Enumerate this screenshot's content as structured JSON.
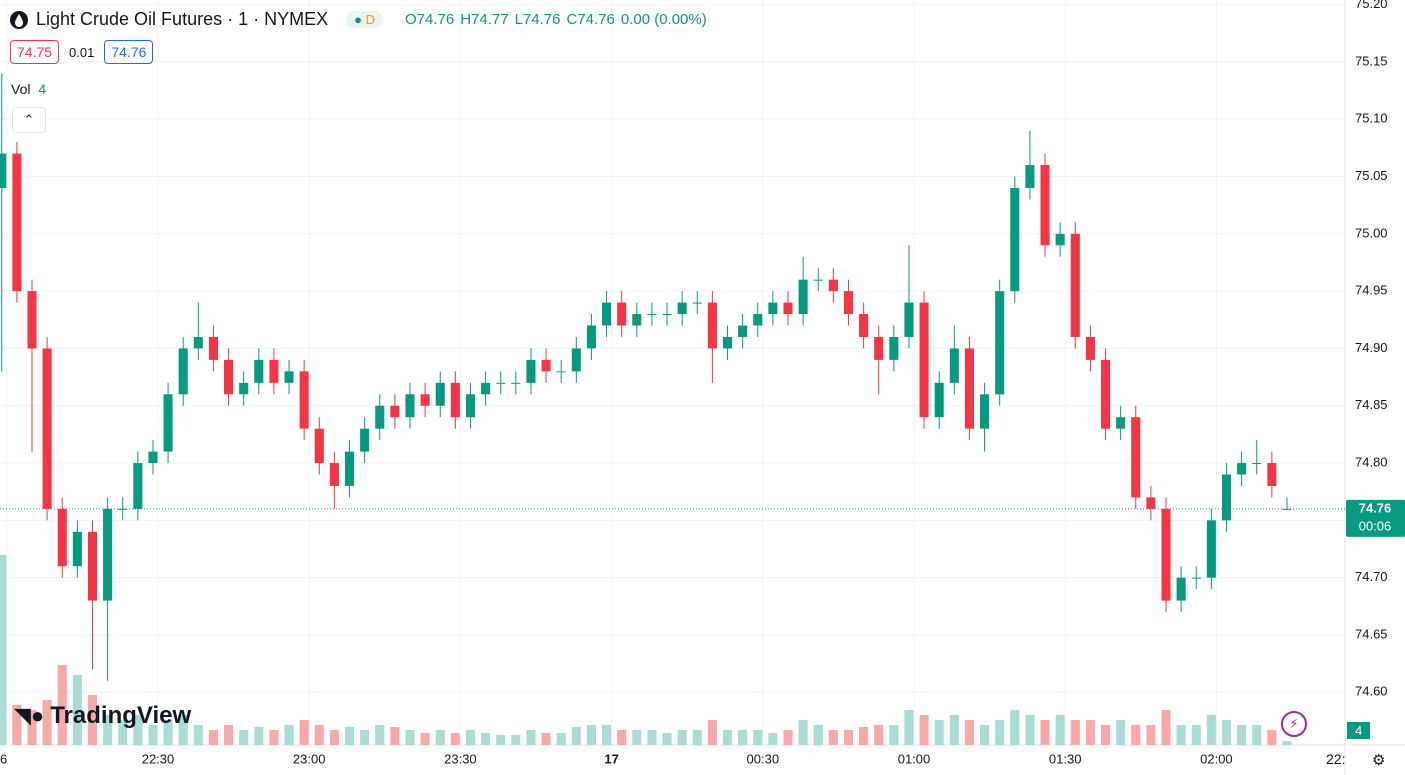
{
  "chart_data": {
    "type": "candlestick",
    "title": "Light Crude Oil Futures · 1 · NYMEX",
    "x": [
      "21:59",
      "22:02",
      "22:05",
      "22:08",
      "22:11",
      "22:14",
      "22:17",
      "22:20",
      "22:23",
      "22:26",
      "22:29",
      "22:32",
      "22:35",
      "22:38",
      "22:41",
      "22:44",
      "22:47",
      "22:50",
      "22:53",
      "22:56",
      "22:59",
      "23:02",
      "23:05",
      "23:08",
      "23:11",
      "23:14",
      "23:17",
      "23:20",
      "23:23",
      "23:26",
      "23:29",
      "23:32",
      "23:35",
      "23:38",
      "23:41",
      "23:44",
      "23:47",
      "23:50",
      "23:53",
      "23:56",
      "23:59",
      "00:02",
      "00:05",
      "00:08",
      "00:11",
      "00:14",
      "00:17",
      "00:20",
      "00:23",
      "00:26",
      "00:29",
      "00:32",
      "00:35",
      "00:38",
      "00:41",
      "00:44",
      "00:47",
      "00:50",
      "00:53",
      "00:56",
      "00:59",
      "01:02",
      "01:05",
      "01:08",
      "01:11",
      "01:14",
      "01:17",
      "01:20",
      "01:23",
      "01:26",
      "01:29",
      "01:32",
      "01:35",
      "01:38",
      "01:41",
      "01:44",
      "01:47",
      "01:50",
      "01:53",
      "01:56",
      "01:59",
      "02:02",
      "02:05",
      "02:08",
      "02:11",
      "02:14"
    ],
    "open": [
      75.04,
      75.07,
      74.95,
      74.9,
      74.76,
      74.71,
      74.74,
      74.68,
      74.76,
      74.76,
      74.8,
      74.81,
      74.86,
      74.9,
      74.91,
      74.89,
      74.86,
      74.87,
      74.89,
      74.87,
      74.88,
      74.83,
      74.8,
      74.78,
      74.81,
      74.83,
      74.85,
      74.84,
      74.86,
      74.85,
      74.87,
      74.84,
      74.86,
      74.87,
      74.87,
      74.87,
      74.89,
      74.88,
      74.88,
      74.9,
      74.92,
      74.94,
      74.92,
      74.93,
      74.93,
      74.93,
      74.94,
      74.94,
      74.9,
      74.91,
      74.92,
      74.93,
      74.94,
      74.93,
      74.96,
      74.96,
      74.95,
      74.93,
      74.91,
      74.89,
      74.91,
      74.94,
      74.84,
      74.87,
      74.9,
      74.83,
      74.86,
      74.95,
      75.04,
      75.06,
      74.99,
      75.0,
      74.91,
      74.89,
      74.83,
      74.84,
      74.77,
      74.76,
      74.68,
      74.7,
      74.7,
      74.75,
      74.79,
      74.8,
      74.8,
      74.76
    ],
    "high": [
      75.14,
      75.08,
      74.96,
      74.91,
      74.77,
      74.75,
      74.75,
      74.77,
      74.77,
      74.81,
      74.82,
      74.87,
      74.91,
      74.94,
      74.92,
      74.9,
      74.88,
      74.9,
      74.9,
      74.89,
      74.89,
      74.84,
      74.81,
      74.82,
      74.84,
      74.86,
      74.86,
      74.87,
      74.87,
      74.88,
      74.88,
      74.87,
      74.88,
      74.88,
      74.88,
      74.9,
      74.9,
      74.89,
      74.91,
      74.93,
      74.95,
      74.95,
      74.94,
      74.94,
      74.94,
      74.95,
      74.95,
      74.95,
      74.92,
      74.93,
      74.94,
      74.95,
      74.95,
      74.98,
      74.97,
      74.97,
      74.96,
      74.94,
      74.92,
      74.92,
      74.99,
      74.95,
      74.88,
      74.92,
      74.91,
      74.87,
      74.96,
      75.05,
      75.09,
      75.07,
      75.01,
      75.01,
      74.92,
      74.9,
      74.85,
      74.85,
      74.78,
      74.77,
      74.71,
      74.71,
      74.76,
      74.8,
      74.81,
      74.82,
      74.81,
      74.77
    ],
    "low": [
      74.88,
      74.94,
      74.81,
      74.75,
      74.7,
      74.7,
      74.62,
      74.61,
      74.75,
      74.75,
      74.79,
      74.8,
      74.85,
      74.89,
      74.88,
      74.85,
      74.85,
      74.86,
      74.86,
      74.86,
      74.82,
      74.79,
      74.76,
      74.77,
      74.8,
      74.82,
      74.83,
      74.83,
      74.84,
      74.84,
      74.83,
      74.83,
      74.85,
      74.86,
      74.86,
      74.86,
      74.87,
      74.87,
      74.87,
      74.89,
      74.91,
      74.91,
      74.91,
      74.92,
      74.92,
      74.92,
      74.93,
      74.87,
      74.89,
      74.9,
      74.91,
      74.92,
      74.92,
      74.92,
      74.95,
      74.94,
      74.92,
      74.9,
      74.86,
      74.88,
      74.9,
      74.83,
      74.83,
      74.86,
      74.82,
      74.81,
      74.85,
      74.94,
      75.03,
      74.98,
      74.98,
      74.9,
      74.88,
      74.82,
      74.82,
      74.76,
      74.75,
      74.67,
      74.67,
      74.69,
      74.69,
      74.74,
      74.78,
      74.79,
      74.77,
      74.76
    ],
    "close": [
      75.07,
      74.95,
      74.9,
      74.76,
      74.71,
      74.74,
      74.68,
      74.76,
      74.76,
      74.8,
      74.81,
      74.86,
      74.9,
      74.91,
      74.89,
      74.86,
      74.87,
      74.89,
      74.87,
      74.88,
      74.83,
      74.8,
      74.78,
      74.81,
      74.83,
      74.85,
      74.84,
      74.86,
      74.85,
      74.87,
      74.84,
      74.86,
      74.87,
      74.87,
      74.87,
      74.89,
      74.88,
      74.88,
      74.9,
      74.92,
      74.94,
      74.92,
      74.93,
      74.93,
      74.93,
      74.94,
      74.94,
      74.9,
      74.91,
      74.92,
      74.93,
      74.94,
      74.93,
      74.96,
      74.96,
      74.95,
      74.93,
      74.91,
      74.89,
      74.91,
      74.94,
      74.84,
      74.87,
      74.9,
      74.83,
      74.86,
      74.95,
      75.04,
      75.06,
      74.99,
      75.0,
      74.91,
      74.89,
      74.83,
      74.84,
      74.77,
      74.76,
      74.68,
      74.7,
      74.7,
      74.75,
      74.79,
      74.8,
      74.8,
      74.78,
      74.76
    ],
    "volume": [
      190,
      40,
      35,
      45,
      80,
      70,
      50,
      30,
      25,
      30,
      20,
      25,
      30,
      20,
      15,
      20,
      15,
      18,
      15,
      20,
      25,
      20,
      15,
      18,
      15,
      20,
      18,
      15,
      12,
      15,
      12,
      15,
      12,
      10,
      10,
      15,
      12,
      12,
      18,
      20,
      20,
      15,
      15,
      15,
      12,
      15,
      15,
      25,
      15,
      15,
      15,
      12,
      15,
      25,
      20,
      15,
      15,
      18,
      20,
      20,
      35,
      30,
      25,
      30,
      25,
      20,
      25,
      35,
      30,
      25,
      30,
      25,
      25,
      20,
      25,
      20,
      20,
      35,
      20,
      20,
      30,
      25,
      20,
      20,
      15,
      4
    ],
    "up_color": "#089981",
    "down_color": "#f23645",
    "volume_up_color": "#a8dcd4",
    "volume_down_color": "#f7a9a9",
    "ylim": [
      74.554,
      75.204
    ],
    "yticks": [
      {
        "value": 74.6,
        "label": "74.60"
      },
      74.65,
      {
        "value": 74.7,
        "label": "74.70"
      },
      74.75,
      {
        "value": 74.8,
        "label": "74.80"
      },
      74.85,
      {
        "value": 74.9,
        "label": "74.90"
      },
      74.95,
      {
        "value": 75.0,
        "label": "75.00"
      },
      75.05,
      {
        "value": 75.1,
        "label": "75.10"
      },
      75.15,
      {
        "value": 75.2,
        "label": "75.20"
      }
    ],
    "y2lim": [
      0,
      745
    ],
    "xticks": [
      {
        "value": "22:00",
        "label": "6"
      },
      "22:30",
      "23:00",
      "23:30",
      {
        "value": "00:00",
        "label": "17"
      },
      "00:30",
      "01:00",
      "01:30",
      "02:00"
    ],
    "grid": true
  },
  "ui": {
    "interval_badge": "D",
    "legend": [
      "O74.76",
      "H74.77",
      "L74.76",
      "C74.76",
      "0.00 (0.00%)"
    ],
    "bid": 74.75,
    "spread": 0.01,
    "ask": 74.76,
    "vol_label": "Vol",
    "vol_value": 4,
    "brand": "TradingView",
    "last_price": 74.76,
    "countdown": "00:06",
    "last_volume": 4,
    "time_label": "22:"
  }
}
